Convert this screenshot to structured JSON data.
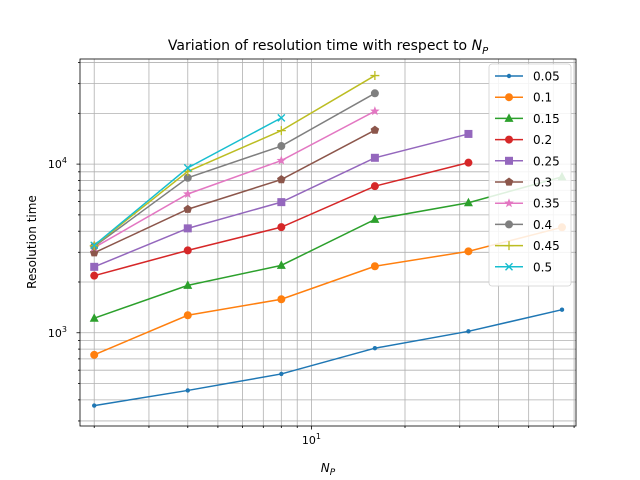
{
  "chart_data": {
    "type": "line",
    "title": "Variation of resolution time with respect to ",
    "title_symbol": "N",
    "title_subscript": "P",
    "xlabel_symbol": "N",
    "xlabel_subscript": "P",
    "ylabel": "Resolution time",
    "x_scale": "log",
    "y_scale": "log",
    "xlim": [
      1.8,
      71
    ],
    "ylim": [
      280,
      42000
    ],
    "x_tick_label": {
      "base": "10",
      "exponent": "1"
    },
    "y_tick_labels": [
      {
        "value": 1000,
        "base": "10",
        "exponent": "3"
      },
      {
        "value": 10000,
        "base": "10",
        "exponent": "4"
      }
    ],
    "grid": true,
    "legend_position": "top-right",
    "series": [
      {
        "name": "0.05",
        "color": "#1f77b4",
        "marker": "point",
        "x": [
          2,
          4,
          8,
          16,
          32,
          64
        ],
        "y": [
          370,
          455,
          570,
          810,
          1020,
          1370
        ]
      },
      {
        "name": "0.1",
        "color": "#ff7f0e",
        "marker": "circle",
        "x": [
          2,
          4,
          8,
          16,
          32,
          64
        ],
        "y": [
          740,
          1270,
          1580,
          2480,
          3040,
          4220
        ]
      },
      {
        "name": "0.15",
        "color": "#2ca02c",
        "marker": "triangle",
        "x": [
          2,
          4,
          8,
          16,
          32,
          64
        ],
        "y": [
          1220,
          1910,
          2510,
          4700,
          5900,
          8400
        ]
      },
      {
        "name": "0.2",
        "color": "#d62728",
        "marker": "circle",
        "x": [
          2,
          4,
          8,
          16,
          32
        ],
        "y": [
          2180,
          3080,
          4230,
          7400,
          10200
        ]
      },
      {
        "name": "0.25",
        "color": "#9467bd",
        "marker": "square",
        "x": [
          2,
          4,
          8,
          16,
          32
        ],
        "y": [
          2460,
          4160,
          5950,
          10900,
          15100
        ]
      },
      {
        "name": "0.3",
        "color": "#8c564b",
        "marker": "pentagon",
        "x": [
          2,
          4,
          8,
          16
        ],
        "y": [
          2980,
          5400,
          8100,
          15900
        ]
      },
      {
        "name": "0.35",
        "color": "#e377c2",
        "marker": "star",
        "x": [
          2,
          4,
          8,
          16
        ],
        "y": [
          3200,
          6650,
          10500,
          20600
        ]
      },
      {
        "name": "0.4",
        "color": "#7f7f7f",
        "marker": "circle",
        "x": [
          2,
          4,
          8,
          16
        ],
        "y": [
          3250,
          8300,
          12800,
          26300
        ]
      },
      {
        "name": "0.45",
        "color": "#bcbd22",
        "marker": "plus",
        "x": [
          2,
          4,
          8,
          16
        ],
        "y": [
          3280,
          9050,
          15800,
          33500
        ]
      },
      {
        "name": "0.5",
        "color": "#17becf",
        "marker": "x",
        "x": [
          2,
          4,
          8
        ],
        "y": [
          3300,
          9500,
          18800
        ]
      }
    ]
  }
}
